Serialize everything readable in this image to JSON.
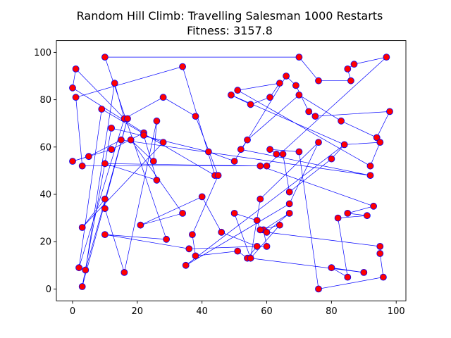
{
  "chart_data": {
    "type": "scatter",
    "title": "Random Hill Climb: Travelling Salesman 1000 Restarts",
    "subtitle": "Fitness: 3157.8",
    "xlabel": "",
    "ylabel": "",
    "xlim": [
      -5,
      103
    ],
    "ylim": [
      -5,
      105
    ],
    "xticks": [
      0,
      20,
      40,
      60,
      80,
      100
    ],
    "yticks": [
      0,
      20,
      40,
      60,
      80,
      100
    ],
    "grid": false,
    "point_color": "#ff0000",
    "point_edge_color": "#0000ff",
    "line_color": "#0000ff",
    "route": [
      [
        10,
        98
      ],
      [
        70,
        98
      ],
      [
        76,
        88
      ],
      [
        86,
        88
      ],
      [
        85,
        93
      ],
      [
        87,
        95
      ],
      [
        97,
        98
      ],
      [
        60,
        52
      ],
      [
        3,
        52
      ],
      [
        1,
        81
      ],
      [
        34,
        94
      ],
      [
        44,
        48
      ],
      [
        9,
        76
      ],
      [
        2,
        9
      ],
      [
        16,
        72
      ],
      [
        13,
        87
      ],
      [
        4,
        8
      ],
      [
        17,
        72
      ],
      [
        3,
        1
      ],
      [
        12,
        68
      ],
      [
        42,
        58
      ],
      [
        50,
        54
      ],
      [
        66,
        90
      ],
      [
        69,
        86
      ],
      [
        73,
        75
      ],
      [
        75,
        73
      ],
      [
        98,
        75
      ],
      [
        94,
        64
      ],
      [
        83,
        71
      ],
      [
        70,
        82
      ],
      [
        54,
        63
      ],
      [
        52,
        59
      ],
      [
        92,
        48
      ],
      [
        15,
        63
      ],
      [
        5,
        56
      ],
      [
        0,
        54
      ],
      [
        12,
        59
      ],
      [
        22,
        66
      ],
      [
        0,
        85
      ],
      [
        1,
        93
      ],
      [
        16,
        72
      ],
      [
        28,
        81
      ],
      [
        38,
        73
      ],
      [
        45,
        48
      ],
      [
        37,
        23
      ],
      [
        38,
        14
      ],
      [
        51,
        16
      ],
      [
        54,
        13
      ],
      [
        57,
        18
      ],
      [
        60,
        18
      ],
      [
        59,
        25
      ],
      [
        67,
        32
      ],
      [
        60,
        24
      ],
      [
        95,
        18
      ],
      [
        95,
        15
      ],
      [
        96,
        5
      ],
      [
        76,
        0
      ],
      [
        70,
        58
      ],
      [
        61,
        59
      ],
      [
        63,
        57
      ],
      [
        65,
        57
      ],
      [
        67,
        41
      ],
      [
        80,
        55
      ],
      [
        84,
        61
      ],
      [
        49,
        82
      ],
      [
        55,
        78
      ],
      [
        61,
        81
      ],
      [
        64,
        87
      ],
      [
        51,
        84
      ],
      [
        92,
        52
      ],
      [
        95,
        62
      ],
      [
        84,
        61
      ],
      [
        35,
        10
      ],
      [
        67,
        36
      ],
      [
        76,
        62
      ],
      [
        58,
        38
      ],
      [
        55,
        13
      ],
      [
        50,
        32
      ],
      [
        57,
        29
      ],
      [
        58,
        25
      ],
      [
        64,
        27
      ],
      [
        55,
        13
      ],
      [
        90,
        7
      ],
      [
        80,
        9
      ],
      [
        85,
        5
      ],
      [
        82,
        30
      ],
      [
        91,
        31
      ],
      [
        85,
        32
      ],
      [
        93,
        35
      ],
      [
        58,
        52
      ],
      [
        10,
        53
      ],
      [
        26,
        46
      ],
      [
        22,
        65
      ],
      [
        28,
        62
      ],
      [
        3,
        26
      ],
      [
        10,
        38
      ],
      [
        10,
        34
      ],
      [
        16,
        7
      ],
      [
        26,
        71
      ],
      [
        25,
        54
      ],
      [
        18,
        63
      ],
      [
        34,
        32
      ],
      [
        21,
        27
      ],
      [
        40,
        39
      ],
      [
        46,
        24
      ],
      [
        57,
        18
      ],
      [
        36,
        17
      ],
      [
        10,
        23
      ],
      [
        29,
        21
      ],
      [
        10,
        98
      ]
    ]
  }
}
